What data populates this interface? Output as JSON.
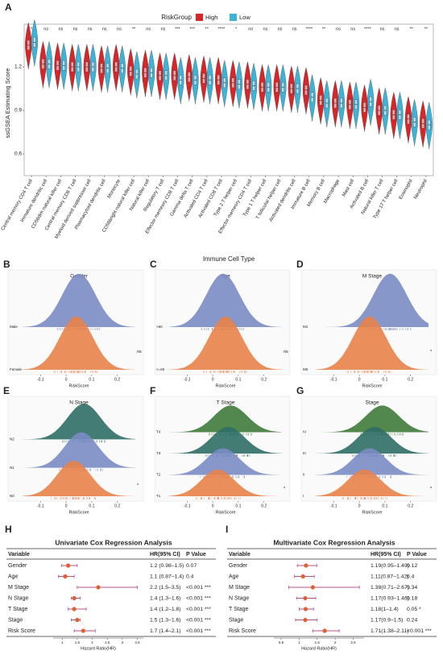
{
  "chart_data": [
    {
      "type": "violin",
      "panel": "A",
      "legend_title": "RiskGroup",
      "ylabel": "ssGSEA Estimating Score",
      "xlabel": "Immune Cell Type",
      "ylim": [
        0.45,
        1.45
      ],
      "yticks": [
        0.6,
        0.9,
        1.2
      ],
      "categories": [
        "Central memory CD4 T cell",
        "Immature dendritic cell",
        "CD56dim natural killer cell",
        "Central memory CD8 T cell",
        "Myeloid derived suppressor cell",
        "Plasmacytoid dendritic cell",
        "Monocyte",
        "CD56bright natural killer cell",
        "Natural killer cell",
        "Regulatory T cell",
        "Effector memeory CD8 T cell",
        "Gamma delta T cell",
        "Activated CD4 T cell",
        "Activated CD8 T cell",
        "Type 2 T helper cell",
        "Effector memeory CD4 T cell",
        "Type 1 T helper cell",
        "T follicular helper cell",
        "Activated dendritic cell",
        "Immature B cell",
        "Memory B cell",
        "Macrophage",
        "Mast cell",
        "Activated B cell",
        "Natural killer T cell",
        "Type 17 T helper cell",
        "Eosinophil",
        "Neutrophil"
      ],
      "significance": [
        "*",
        "ns",
        "ns",
        "ns",
        "ns",
        "ns",
        "ns",
        "**",
        "ns",
        "ns",
        "***",
        "***",
        "**",
        "****",
        "*",
        "ns",
        "ns",
        "ns",
        "ns",
        "****",
        "**",
        "ns",
        "ns",
        "****",
        "ns",
        "ns",
        "**",
        "**"
      ],
      "series": [
        {
          "name": "High",
          "color": "#d7262a",
          "values": [
            1.35,
            1.22,
            1.21,
            1.2,
            1.2,
            1.19,
            1.2,
            1.17,
            1.16,
            1.14,
            1.14,
            1.13,
            1.12,
            1.11,
            1.09,
            1.08,
            1.06,
            1.06,
            1.05,
            1.04,
            0.97,
            0.95,
            0.94,
            0.92,
            0.9,
            0.87,
            0.84,
            0.81
          ]
        },
        {
          "name": "Low",
          "color": "#3fb3d6",
          "values": [
            1.37,
            1.22,
            1.21,
            1.2,
            1.2,
            1.19,
            1.19,
            1.15,
            1.16,
            1.14,
            1.11,
            1.11,
            1.11,
            1.09,
            1.08,
            1.07,
            1.06,
            1.06,
            1.05,
            0.99,
            0.95,
            0.95,
            0.94,
            0.96,
            0.9,
            0.87,
            0.82,
            0.8
          ]
        }
      ]
    },
    {
      "type": "ridge",
      "panel": "B",
      "title": "Gender",
      "categories": [
        "Male",
        "Female"
      ],
      "values": [
        0.05,
        0.04
      ],
      "colors": [
        "#7b8cc4",
        "#e8824a"
      ],
      "significance": "ns",
      "xlabel": "RiskScore",
      "xlim": [
        -0.17,
        0.27
      ],
      "xticks": [
        -0.1,
        0,
        0.1,
        0.2
      ]
    },
    {
      "type": "ridge",
      "panel": "C",
      "title": "Age",
      "categories": [
        ">60",
        "<=60"
      ],
      "values": [
        0.04,
        0.05
      ],
      "colors": [
        "#7b8cc4",
        "#e8824a"
      ],
      "significance": "ns",
      "xlabel": "RiskScore",
      "xlim": [
        -0.17,
        0.27
      ],
      "xticks": [
        -0.1,
        0,
        0.1,
        0.2
      ]
    },
    {
      "type": "ridge",
      "panel": "D",
      "title": "M Stage",
      "categories": [
        "M1",
        "M0"
      ],
      "values": [
        0.12,
        0.04
      ],
      "colors": [
        "#7b8cc4",
        "#e8824a"
      ],
      "significance": "*",
      "xlabel": "RiskScore",
      "xlim": [
        -0.17,
        0.27
      ],
      "xticks": [
        -0.1,
        0,
        0.1,
        0.2
      ]
    },
    {
      "type": "ridge",
      "panel": "E",
      "title": "N Stage",
      "categories": [
        "N2",
        "N1",
        "N0"
      ],
      "values": [
        0.07,
        0.06,
        0.03
      ],
      "colors": [
        "#2e6e66",
        "#7b8cc4",
        "#e8824a"
      ],
      "significance": "*",
      "xlabel": "RiskScore",
      "xlim": [
        -0.17,
        0.27
      ],
      "xticks": [
        -0.1,
        0,
        0.1,
        0.2
      ]
    },
    {
      "type": "ridge",
      "panel": "F",
      "title": "T Stage",
      "categories": [
        "T4",
        "T3",
        "T2",
        "T1"
      ],
      "values": [
        0.07,
        0.06,
        0.04,
        0.02
      ],
      "colors": [
        "#3f7a3a",
        "#2e6e66",
        "#7b8cc4",
        "#e8824a"
      ],
      "significance": "*",
      "xlabel": "RiskScore",
      "xlim": [
        -0.17,
        0.27
      ],
      "xticks": [
        -0.1,
        0,
        0.1,
        0.2
      ]
    },
    {
      "type": "ridge",
      "panel": "G",
      "title": "Stage",
      "categories": [
        "IV",
        "III",
        "II",
        "I"
      ],
      "values": [
        0.09,
        0.06,
        0.04,
        0.02
      ],
      "colors": [
        "#3f7a3a",
        "#2e6e66",
        "#7b8cc4",
        "#e8824a"
      ],
      "significance": "*",
      "xlabel": "RiskScore",
      "xlim": [
        -0.17,
        0.27
      ],
      "xticks": [
        -0.1,
        0,
        0.1,
        0.2
      ]
    },
    {
      "type": "forest",
      "panel": "H",
      "title": "Univariate Cox Regression Analysis",
      "headers": [
        "Variable",
        "HR(95% CI)",
        "P Value"
      ],
      "color": "#e0602e",
      "bar_color": "#b0508a",
      "variables": [
        "Gender",
        "Age",
        "M Stage",
        "N Stage",
        "T Stage",
        "Stage",
        "Risk Score"
      ],
      "hr": [
        1.2,
        1.1,
        2.2,
        1.4,
        1.4,
        1.5,
        1.7
      ],
      "lower": [
        0.98,
        0.87,
        1.5,
        1.3,
        1.2,
        1.3,
        1.4
      ],
      "upper": [
        1.5,
        1.4,
        3.5,
        1.6,
        1.8,
        1.6,
        2.1
      ],
      "hr_labels": [
        "1.2 (0.98–1.5)",
        "1.1 (0.87–1.4)",
        "2.2 (1.5–3.5)",
        "1.4 (1.3–1.6)",
        "1.4 (1.2–1.8)",
        "1.5 (1.3–1.6)",
        "1.7 (1.4–2.1)"
      ],
      "p_labels": [
        "0.07",
        "0.4",
        "<0.001 ***",
        "<0.001 ***",
        "<0.001 ***",
        "<0.001 ***",
        "<0.001 ***"
      ],
      "xlabel": "Hazard Ratio(HR)",
      "xlim": [
        0.7,
        3.7
      ],
      "xticks": [
        1,
        1.5,
        2,
        2.5,
        3,
        3.5
      ]
    },
    {
      "type": "forest",
      "panel": "I",
      "title": "Multivariate Cox Regression Analysis",
      "headers": [
        "Variable",
        "HR(95% CI)",
        "P Value"
      ],
      "color": "#e0602e",
      "bar_color": "#b0508a",
      "variables": [
        "Gender",
        "Age",
        "M Stage",
        "N Stage",
        "T Stage",
        "Stage",
        "Risk Score"
      ],
      "hr": [
        1.19,
        1.11,
        1.38,
        1.17,
        1.18,
        1.17,
        1.71
      ],
      "lower": [
        0.95,
        0.87,
        0.71,
        0.93,
        1,
        0.9,
        1.38
      ],
      "upper": [
        1.49,
        1.42,
        2.67,
        1.46,
        1.4,
        1.5,
        2.11
      ],
      "hr_labels": [
        "1.19(0.95–1.49)",
        "1.11(0.87–1.42)",
        "1.38(0.71–2.67)",
        "1.17(0.93–1.46)",
        "1.18(1–1.4)",
        "1.17(0.9–1.5)",
        "1.71(1.38–2.11)"
      ],
      "p_labels": [
        "0.12",
        "0.4",
        "0.34",
        "0.18",
        "0.05 *",
        "0.24",
        "<0.001 ***"
      ],
      "xlabel": "Hazard Ratio(HR)",
      "xlim": [
        0.3,
        2.8
      ],
      "xticks": [
        0.5,
        1,
        1.5,
        2,
        2.5
      ]
    }
  ]
}
